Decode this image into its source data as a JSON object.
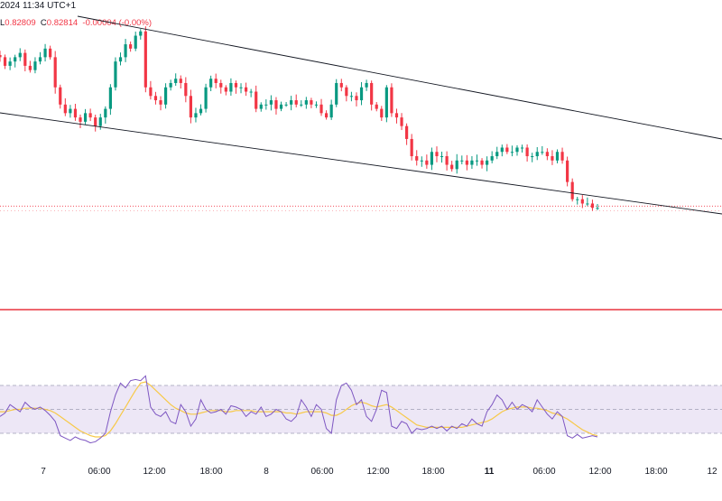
{
  "header": {
    "datetime": "2024 11:34 UTC+1",
    "ohlc": [
      {
        "label": "L",
        "value": "0.82809"
      },
      {
        "label": "C",
        "value": "0.82814"
      },
      {
        "label": "",
        "value": "-0.00004 (-0.00%)"
      }
    ]
  },
  "colors": {
    "up": "#089981",
    "down": "#f23645",
    "channel": "#131722",
    "rsi_line": "#7e57c2",
    "rsi_ma": "#f7c948",
    "rsi_band": "#ede7f6",
    "separator": "#e8343e",
    "price_line": "#f23645"
  },
  "x_axis": {
    "ticks": [
      {
        "label": "7",
        "bold": false
      },
      {
        "label": "06:00",
        "bold": false
      },
      {
        "label": "12:00",
        "bold": false
      },
      {
        "label": "18:00",
        "bold": false
      },
      {
        "label": "8",
        "bold": false
      },
      {
        "label": "06:00",
        "bold": false
      },
      {
        "label": "12:00",
        "bold": false
      },
      {
        "label": "18:00",
        "bold": false
      },
      {
        "label": "11",
        "bold": true
      },
      {
        "label": "06:00",
        "bold": false
      },
      {
        "label": "12:00",
        "bold": false
      },
      {
        "label": "18:00",
        "bold": false
      },
      {
        "label": "12",
        "bold": false
      }
    ]
  },
  "chart_data": [
    {
      "type": "candlestick",
      "title": "",
      "price_range_approx": [
        0.828,
        0.8323
      ],
      "last_close": 0.82814,
      "series": [
        {
          "name": "",
          "close_path": [
            0.8316,
            0.8314,
            0.8315,
            0.8316,
            0.8317,
            0.8314,
            0.8313,
            0.8315,
            0.8316,
            0.8318,
            0.8316,
            0.8309,
            0.8305,
            0.8303,
            0.8304,
            0.8302,
            0.8301,
            0.8303,
            0.8302,
            0.83,
            0.8302,
            0.8304,
            0.8309,
            0.8315,
            0.8316,
            0.8319,
            0.8318,
            0.8321,
            0.8322,
            0.8309,
            0.8307,
            0.8306,
            0.8305,
            0.8309,
            0.831,
            0.8311,
            0.831,
            0.8307,
            0.8302,
            0.8303,
            0.8304,
            0.8309,
            0.8311,
            0.831,
            0.8309,
            0.8308,
            0.831,
            0.8309,
            0.8309,
            0.8308,
            0.8308,
            0.8304,
            0.8305,
            0.8305,
            0.8306,
            0.8304,
            0.8305,
            0.8305,
            0.8306,
            0.8305,
            0.8305,
            0.8306,
            0.8305,
            0.8305,
            0.8303,
            0.8302,
            0.8305,
            0.831,
            0.8309,
            0.8307,
            0.8307,
            0.8306,
            0.8309,
            0.831,
            0.8305,
            0.8304,
            0.8302,
            0.8309,
            0.8303,
            0.8302,
            0.83,
            0.8297,
            0.8293,
            0.8292,
            0.8292,
            0.8291,
            0.8294,
            0.8293,
            0.8293,
            0.8291,
            0.829,
            0.8292,
            0.8292,
            0.8291,
            0.8292,
            0.8292,
            0.8291,
            0.8292,
            0.8293,
            0.8294,
            0.8295,
            0.8294,
            0.8294,
            0.8295,
            0.8295,
            0.8293,
            0.8293,
            0.8294,
            0.8294,
            0.8293,
            0.8292,
            0.8294,
            0.8292,
            0.8287,
            0.8283,
            0.8283,
            0.8282,
            0.8282,
            0.8281,
            0.8281
          ]
        }
      ],
      "channel_lines": [
        {
          "name": "",
          "description": "descending channel upper line"
        },
        {
          "name": "",
          "description": "descending channel lower line"
        }
      ]
    },
    {
      "type": "line",
      "title": "",
      "ylim": [
        0,
        100
      ],
      "bands": [
        30,
        50,
        70
      ],
      "series": [
        {
          "name": "",
          "values": [
            44,
            47,
            54,
            51,
            48,
            56,
            52,
            50,
            52,
            49,
            45,
            40,
            28,
            26,
            24,
            27,
            25,
            24,
            22,
            23,
            26,
            30,
            48,
            62,
            72,
            68,
            74,
            75,
            74,
            78,
            52,
            46,
            44,
            48,
            40,
            38,
            54,
            48,
            36,
            42,
            58,
            50,
            47,
            48,
            50,
            46,
            53,
            52,
            50,
            44,
            48,
            46,
            52,
            44,
            46,
            50,
            48,
            42,
            40,
            44,
            58,
            52,
            44,
            54,
            50,
            34,
            30,
            58,
            70,
            72,
            66,
            54,
            58,
            44,
            40,
            50,
            66,
            64,
            36,
            34,
            40,
            38,
            30,
            34,
            33,
            34,
            36,
            34,
            36,
            32,
            36,
            34,
            38,
            36,
            42,
            38,
            36,
            48,
            54,
            62,
            58,
            50,
            56,
            50,
            54,
            52,
            48,
            58,
            52,
            46,
            42,
            48,
            44,
            28,
            26,
            29,
            26,
            27,
            28,
            27
          ]
        },
        {
          "name": "",
          "values": [
            48,
            48,
            49,
            50,
            50,
            51,
            51,
            51,
            51,
            50,
            49,
            47,
            44,
            41,
            38,
            35,
            32,
            30,
            28,
            27,
            27,
            28,
            32,
            38,
            45,
            52,
            59,
            66,
            72,
            73,
            70,
            66,
            62,
            58,
            54,
            51,
            49,
            47,
            46,
            46,
            47,
            48,
            49,
            49,
            49,
            48,
            48,
            49,
            49,
            49,
            49,
            48,
            48,
            48,
            48,
            48,
            48,
            47,
            47,
            46,
            47,
            48,
            48,
            48,
            48,
            47,
            45,
            45,
            47,
            50,
            53,
            55,
            56,
            55,
            53,
            52,
            53,
            54,
            52,
            49,
            46,
            43,
            40,
            37,
            36,
            35,
            35,
            35,
            35,
            35,
            35,
            35,
            35,
            36,
            37,
            38,
            39,
            40,
            42,
            45,
            48,
            50,
            51,
            52,
            52,
            52,
            51,
            51,
            50,
            49,
            47,
            46,
            44,
            42,
            39,
            36,
            33,
            31,
            29,
            28
          ]
        }
      ]
    }
  ]
}
